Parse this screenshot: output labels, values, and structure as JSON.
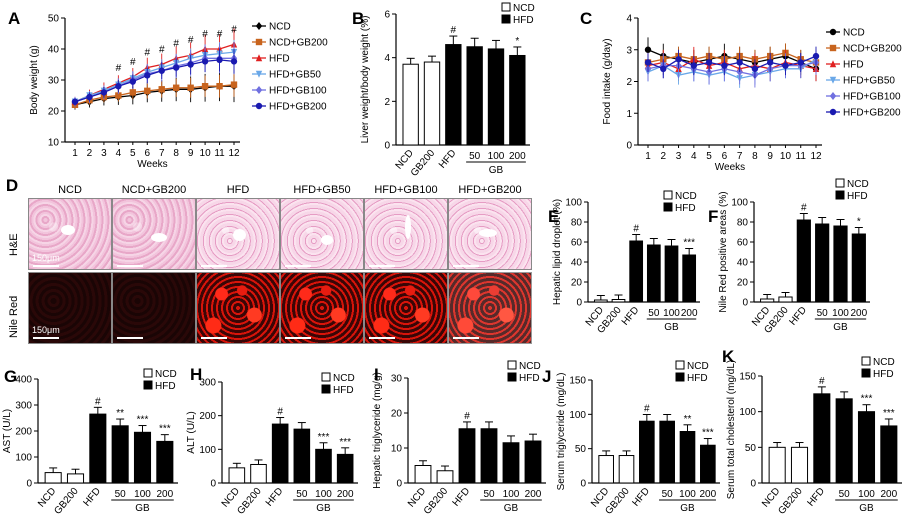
{
  "panels": {
    "A": "A",
    "B": "B",
    "C": "C",
    "D": "D",
    "E": "E",
    "F": "F",
    "G": "G",
    "H": "H",
    "I": "I",
    "J": "J",
    "K": "K"
  },
  "groups": {
    "ncd": "NCD",
    "hfd": "HFD",
    "gb": "GB"
  },
  "micro": {
    "columns": [
      "NCD",
      "NCD+GB200",
      "HFD",
      "HFD+GB50",
      "HFD+GB100",
      "HFD+GB200"
    ],
    "rows": [
      "H&E",
      "Nile Red"
    ],
    "scale_label": "150μm",
    "colors": {
      "he": "#efb8d4",
      "nile_red": "#ff2a1a"
    }
  },
  "chart_data": [
    {
      "id": "A",
      "type": "line",
      "xlabel": "Weeks",
      "ylabel": "Body weight (g)",
      "x": [
        1,
        2,
        3,
        4,
        5,
        6,
        7,
        8,
        9,
        10,
        11,
        12
      ],
      "ylim": [
        10,
        50
      ],
      "yticks": [
        10,
        20,
        30,
        40,
        50
      ],
      "series": [
        {
          "name": "NCD",
          "color": "#000000",
          "marker": "diamond",
          "values": [
            22,
            23,
            24,
            24.5,
            25,
            26,
            26.5,
            27,
            27,
            27.5,
            28,
            28
          ]
        },
        {
          "name": "NCD+GB200",
          "color": "#c8641e",
          "marker": "square",
          "values": [
            22,
            23.5,
            24.5,
            25,
            26,
            26.5,
            27,
            27.5,
            27.5,
            28,
            28,
            28.5
          ]
        },
        {
          "name": "HFD",
          "color": "#e02020",
          "marker": "triangle",
          "values": [
            23,
            25,
            27,
            29,
            31,
            34,
            35,
            37,
            38,
            40,
            40,
            41.5
          ]
        },
        {
          "name": "HFD+GB50",
          "color": "#6aa8e8",
          "marker": "triangle-down",
          "values": [
            23,
            25,
            26.5,
            28.5,
            30.5,
            32.5,
            34,
            35.5,
            37,
            38,
            38.5,
            39
          ]
        },
        {
          "name": "HFD+GB100",
          "color": "#7070e0",
          "marker": "diamond",
          "values": [
            23,
            24.5,
            26,
            28,
            30,
            32,
            33,
            34.5,
            35.5,
            37,
            37,
            37
          ]
        },
        {
          "name": "HFD+GB200",
          "color": "#1a1ab0",
          "marker": "circle",
          "values": [
            23,
            24.5,
            26,
            28,
            29.5,
            31.5,
            33,
            34,
            35,
            36,
            36.5,
            36
          ]
        }
      ],
      "annotations": [
        {
          "x": 4,
          "text": "#"
        },
        {
          "x": 5,
          "text": "#"
        },
        {
          "x": 6,
          "text": "#"
        },
        {
          "x": 7,
          "text": "#"
        },
        {
          "x": 8,
          "text": "#"
        },
        {
          "x": 9,
          "text": "#"
        },
        {
          "x": 10,
          "text": "#"
        },
        {
          "x": 11,
          "text": "#"
        },
        {
          "x": 12,
          "text": "#"
        }
      ],
      "legend": "right"
    },
    {
      "id": "B",
      "type": "bar",
      "ylabel": "Liver weight/body weight (%)",
      "categories": [
        "NCD",
        "GB200",
        "HFD",
        "50",
        "100",
        "200"
      ],
      "values": [
        3.7,
        3.8,
        4.6,
        4.5,
        4.4,
        4.1
      ],
      "fill": [
        "NCD",
        "NCD",
        "HFD",
        "HFD",
        "HFD",
        "HFD"
      ],
      "marks": [
        "",
        "",
        "#",
        "",
        "",
        "*"
      ],
      "ylim": [
        0,
        6
      ],
      "yticks": [
        0,
        2,
        4,
        6
      ],
      "legend": "top-right"
    },
    {
      "id": "C",
      "type": "line",
      "xlabel": "Weeks",
      "ylabel": "Food intake (g/day)",
      "x": [
        1,
        2,
        3,
        4,
        5,
        6,
        7,
        8,
        9,
        10,
        11,
        12
      ],
      "ylim": [
        0,
        4
      ],
      "yticks": [
        0,
        1,
        2,
        3,
        4
      ],
      "series": [
        {
          "name": "NCD",
          "color": "#000000",
          "marker": "circle",
          "values": [
            3.0,
            2.8,
            2.7,
            2.6,
            2.7,
            2.8,
            2.7,
            2.6,
            2.7,
            2.8,
            2.6,
            2.4
          ]
        },
        {
          "name": "NCD+GB200",
          "color": "#c8641e",
          "marker": "square",
          "values": [
            2.6,
            2.7,
            2.8,
            2.7,
            2.8,
            2.7,
            2.8,
            2.7,
            2.8,
            2.9,
            2.7,
            2.6
          ]
        },
        {
          "name": "HFD",
          "color": "#e02020",
          "marker": "triangle",
          "values": [
            2.5,
            2.6,
            2.4,
            2.7,
            2.5,
            2.6,
            2.4,
            2.5,
            2.4,
            2.6,
            2.5,
            2.4
          ]
        },
        {
          "name": "HFD+GB50",
          "color": "#6aa8e8",
          "marker": "triangle-down",
          "values": [
            2.3,
            2.5,
            2.2,
            2.3,
            2.2,
            2.3,
            2.1,
            2.2,
            2.3,
            2.4,
            2.4,
            2.7
          ]
        },
        {
          "name": "HFD+GB100",
          "color": "#7070e0",
          "marker": "diamond",
          "values": [
            2.4,
            2.5,
            2.5,
            2.4,
            2.3,
            2.4,
            2.3,
            2.2,
            2.4,
            2.5,
            2.5,
            2.6
          ]
        },
        {
          "name": "HFD+GB200",
          "color": "#1a1ab0",
          "marker": "circle",
          "values": [
            2.6,
            2.4,
            2.7,
            2.5,
            2.6,
            2.5,
            2.6,
            2.4,
            2.6,
            2.5,
            2.6,
            2.8
          ]
        }
      ],
      "legend": "right"
    },
    {
      "id": "E",
      "type": "bar",
      "ylabel": "Hepatic lipid droplet (%)",
      "categories": [
        "NCD",
        "GB200",
        "HFD",
        "50",
        "100",
        "200"
      ],
      "values": [
        2,
        2.5,
        61,
        57,
        56,
        47
      ],
      "fill": [
        "NCD",
        "NCD",
        "HFD",
        "HFD",
        "HFD",
        "HFD"
      ],
      "marks": [
        "",
        "",
        "#",
        "",
        "",
        "***"
      ],
      "ylim": [
        0,
        100
      ],
      "yticks": [
        0,
        20,
        40,
        60,
        80,
        100
      ],
      "legend": "top-right"
    },
    {
      "id": "F",
      "type": "bar",
      "ylabel": "Nile Red positive areas (%)",
      "categories": [
        "NCD",
        "GB200",
        "HFD",
        "50",
        "100",
        "200"
      ],
      "values": [
        3,
        5,
        82,
        78,
        76,
        68
      ],
      "fill": [
        "NCD",
        "NCD",
        "HFD",
        "HFD",
        "HFD",
        "HFD"
      ],
      "marks": [
        "",
        "",
        "#",
        "",
        "",
        "*"
      ],
      "ylim": [
        0,
        100
      ],
      "yticks": [
        0,
        20,
        40,
        60,
        80,
        100
      ],
      "legend": "top-right"
    },
    {
      "id": "G",
      "type": "bar",
      "ylabel": "AST (U/L)",
      "categories": [
        "NCD",
        "GB200",
        "HFD",
        "50",
        "100",
        "200"
      ],
      "values": [
        40,
        35,
        265,
        220,
        195,
        160
      ],
      "fill": [
        "NCD",
        "NCD",
        "HFD",
        "HFD",
        "HFD",
        "HFD"
      ],
      "marks": [
        "",
        "",
        "#",
        "**",
        "***",
        "***"
      ],
      "ylim": [
        0,
        400
      ],
      "yticks": [
        0,
        100,
        200,
        300,
        400
      ],
      "legend": "top-right"
    },
    {
      "id": "H",
      "type": "bar",
      "ylabel": "ALT (U/L)",
      "categories": [
        "NCD",
        "GB200",
        "HFD",
        "50",
        "100",
        "200"
      ],
      "values": [
        45,
        55,
        175,
        160,
        100,
        85
      ],
      "fill": [
        "NCD",
        "NCD",
        "HFD",
        "HFD",
        "HFD",
        "HFD"
      ],
      "marks": [
        "",
        "",
        "#",
        "",
        "***",
        "***"
      ],
      "ylim": [
        0,
        300
      ],
      "yticks": [
        0,
        100,
        200,
        300
      ],
      "legend": "top-right"
    },
    {
      "id": "I",
      "type": "bar",
      "ylabel": "Hepatic triglyceride (mg/g)",
      "categories": [
        "NCD",
        "GB200",
        "HFD",
        "50",
        "100",
        "200"
      ],
      "values": [
        5,
        3.5,
        15.5,
        15.5,
        11.5,
        12
      ],
      "fill": [
        "NCD",
        "NCD",
        "HFD",
        "HFD",
        "HFD",
        "HFD"
      ],
      "marks": [
        "",
        "",
        "#",
        "",
        "",
        ""
      ],
      "ylim": [
        0,
        30
      ],
      "yticks": [
        0,
        10,
        20,
        30
      ],
      "legend": "top-right"
    },
    {
      "id": "J",
      "type": "bar",
      "ylabel": "Serum triglyceride (mg/dL)",
      "categories": [
        "NCD",
        "GB200",
        "HFD",
        "50",
        "100",
        "200"
      ],
      "values": [
        40,
        40,
        90,
        90,
        75,
        55
      ],
      "fill": [
        "NCD",
        "NCD",
        "HFD",
        "HFD",
        "HFD",
        "HFD"
      ],
      "marks": [
        "",
        "",
        "#",
        "",
        "**",
        "***"
      ],
      "ylim": [
        0,
        150
      ],
      "yticks": [
        0,
        50,
        100,
        150
      ],
      "legend": "top-right"
    },
    {
      "id": "K",
      "type": "bar",
      "ylabel": "Serum total cholesterol (mg/dL)",
      "categories": [
        "NCD",
        "GB200",
        "HFD",
        "50",
        "100",
        "200"
      ],
      "values": [
        50,
        50,
        125,
        118,
        100,
        80
      ],
      "fill": [
        "NCD",
        "NCD",
        "HFD",
        "HFD",
        "HFD",
        "HFD"
      ],
      "marks": [
        "",
        "",
        "#",
        "",
        "***",
        "***"
      ],
      "ylim": [
        0,
        150
      ],
      "yticks": [
        0,
        50,
        100,
        150
      ],
      "legend": "top-right"
    }
  ]
}
